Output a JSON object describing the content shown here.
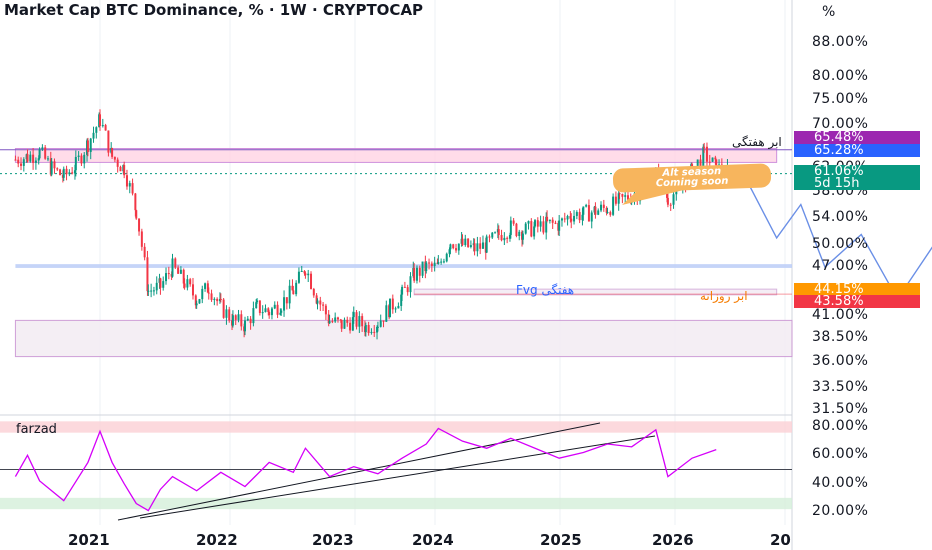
{
  "header": {
    "title": "Market Cap BTC Dominance, % · 1W · CRYPTOCAP",
    "unit": "%"
  },
  "colors": {
    "up": "#089981",
    "down": "#f23645",
    "osc_line": "#d500f9",
    "purple_zone": "#ffd6e6",
    "blue_band": "#bbcdf7",
    "projection": "#6a8fe6",
    "bubble": "#f7b55d",
    "osc_top_band": "#fbd0d4",
    "osc_bottom_band": "#d5efda"
  },
  "price_axis_ticks": [
    "88.00%",
    "80.00%",
    "75.00%",
    "70.00%",
    "62.00%",
    "58.00%",
    "54.00%",
    "50.00%",
    "47.00%",
    "41.00%",
    "38.50%",
    "36.00%",
    "33.50%",
    "31.50%"
  ],
  "badges": [
    {
      "label": "65.48%",
      "color": "#9c27b0",
      "value": 65.48
    },
    {
      "label": "65.28%",
      "color": "#2962ff",
      "value": 65.28
    },
    {
      "label": "61.06%",
      "color": "#089981",
      "value": 61.06
    },
    {
      "label": "5d 15h",
      "color": "#089981",
      "value": null
    },
    {
      "label": "44.15%",
      "color": "#ff9800",
      "value": 44.15
    },
    {
      "label": "43.58%",
      "color": "#f23645",
      "value": 43.58
    }
  ],
  "annotations": {
    "weekly_cloud": "ابر هفتگی",
    "weekly_fvg": "Fvg هفتگی",
    "daily_cloud": "ابر روزانه",
    "bubble_line1": "Alt season",
    "bubble_line2": "Coming soon"
  },
  "oscillator": {
    "name": "farzad",
    "ticks": [
      "80.00%",
      "60.00%",
      "40.00%",
      "20.00%"
    ]
  },
  "x_axis_ticks": [
    "2021",
    "2022",
    "2023",
    "2024",
    "2025",
    "2026",
    "20"
  ],
  "chart_data": [
    {
      "type": "candlestick",
      "title": "Market Cap BTC Dominance, % · 1W · CRYPTOCAP",
      "unit": "%",
      "interval": "1W",
      "x_range": [
        "2020-06",
        "2027"
      ],
      "y_scale": "log",
      "key_levels": [
        65.48,
        65.28,
        61.06,
        44.15,
        43.58
      ],
      "close_path": [
        {
          "date": "2020-06",
          "value": 63.5
        },
        {
          "date": "2020-07",
          "value": 64.0
        },
        {
          "date": "2020-08",
          "value": 64.8
        },
        {
          "date": "2020-09",
          "value": 62.0
        },
        {
          "date": "2020-10",
          "value": 60.5
        },
        {
          "date": "2020-11",
          "value": 62.5
        },
        {
          "date": "2020-12",
          "value": 66.5
        },
        {
          "date": "2021-01",
          "value": 71.0
        },
        {
          "date": "2021-02",
          "value": 64.0
        },
        {
          "date": "2021-03",
          "value": 62.0
        },
        {
          "date": "2021-04",
          "value": 55.0
        },
        {
          "date": "2021-05",
          "value": 44.0
        },
        {
          "date": "2021-06",
          "value": 44.5
        },
        {
          "date": "2021-07",
          "value": 47.0
        },
        {
          "date": "2021-08",
          "value": 45.0
        },
        {
          "date": "2021-09",
          "value": 43.0
        },
        {
          "date": "2021-10",
          "value": 44.5
        },
        {
          "date": "2021-11",
          "value": 42.0
        },
        {
          "date": "2021-12",
          "value": 40.5
        },
        {
          "date": "2022-01",
          "value": 40.0
        },
        {
          "date": "2022-02",
          "value": 42.0
        },
        {
          "date": "2022-03",
          "value": 41.5
        },
        {
          "date": "2022-04",
          "value": 42.5
        },
        {
          "date": "2022-05",
          "value": 44.0
        },
        {
          "date": "2022-06",
          "value": 47.0
        },
        {
          "date": "2022-07",
          "value": 43.0
        },
        {
          "date": "2022-08",
          "value": 40.5
        },
        {
          "date": "2022-09",
          "value": 40.0
        },
        {
          "date": "2022-10",
          "value": 40.5
        },
        {
          "date": "2022-11",
          "value": 39.8
        },
        {
          "date": "2022-12",
          "value": 40.3
        },
        {
          "date": "2023-01",
          "value": 42.0
        },
        {
          "date": "2023-02",
          "value": 43.5
        },
        {
          "date": "2023-03",
          "value": 46.0
        },
        {
          "date": "2023-04",
          "value": 47.0
        },
        {
          "date": "2023-05",
          "value": 47.0
        },
        {
          "date": "2023-06",
          "value": 50.5
        },
        {
          "date": "2023-07",
          "value": 50.0
        },
        {
          "date": "2023-08",
          "value": 49.5
        },
        {
          "date": "2023-09",
          "value": 50.0
        },
        {
          "date": "2023-10",
          "value": 51.5
        },
        {
          "date": "2023-11",
          "value": 52.5
        },
        {
          "date": "2023-12",
          "value": 52.0
        },
        {
          "date": "2024-01",
          "value": 52.5
        },
        {
          "date": "2024-02",
          "value": 53.0
        },
        {
          "date": "2024-03",
          "value": 53.0
        },
        {
          "date": "2024-04",
          "value": 54.5
        },
        {
          "date": "2024-05",
          "value": 54.5
        },
        {
          "date": "2024-06",
          "value": 55.0
        },
        {
          "date": "2024-07",
          "value": 55.5
        },
        {
          "date": "2024-08",
          "value": 56.5
        },
        {
          "date": "2024-09",
          "value": 57.5
        },
        {
          "date": "2024-10",
          "value": 58.5
        },
        {
          "date": "2024-11",
          "value": 60.5
        },
        {
          "date": "2024-12",
          "value": 57.0
        },
        {
          "date": "2025-01",
          "value": 58.5
        },
        {
          "date": "2025-02",
          "value": 61.5
        },
        {
          "date": "2025-03",
          "value": 64.5
        },
        {
          "date": "2025-04",
          "value": 62.0
        },
        {
          "date": "2025-05",
          "value": 61.06
        }
      ],
      "projection_path": [
        {
          "date": "2025-06",
          "value": 62.0
        },
        {
          "date": "2025-09",
          "value": 51.0
        },
        {
          "date": "2025-11",
          "value": 56.0
        },
        {
          "date": "2026-01",
          "value": 47.0
        },
        {
          "date": "2026-04",
          "value": 51.5
        },
        {
          "date": "2026-07",
          "value": 43.0
        },
        {
          "date": "2026-10",
          "value": 50.0
        }
      ],
      "zones": [
        {
          "name": "weekly cloud",
          "from": 63.0,
          "to": 65.5,
          "x_start": "2020-06",
          "x_end": "2025-09"
        },
        {
          "name": "blue band",
          "from": 46.9,
          "to": 47.4,
          "x_start": "2020-06",
          "x_end": "2027"
        },
        {
          "name": "weekly Fvg",
          "from": 43.5,
          "to": 44.2,
          "x_start": "2023-03",
          "x_end": "2025-09"
        },
        {
          "name": "lower box",
          "from": 36.6,
          "to": 40.5,
          "x_start": "2020-06",
          "x_end": "2026-08"
        }
      ]
    },
    {
      "type": "line",
      "name": "farzad",
      "y_ticks": [
        80,
        60,
        40,
        20
      ],
      "bands": [
        {
          "from": 76,
          "to": 84
        },
        {
          "from": 22,
          "to": 30
        }
      ],
      "reference_line": 50,
      "points": [
        {
          "date": "2020-06",
          "value": 45
        },
        {
          "date": "2020-07",
          "value": 60
        },
        {
          "date": "2020-08",
          "value": 42
        },
        {
          "date": "2020-10",
          "value": 28
        },
        {
          "date": "2020-12",
          "value": 55
        },
        {
          "date": "2021-01",
          "value": 77
        },
        {
          "date": "2021-02",
          "value": 55
        },
        {
          "date": "2021-03",
          "value": 40
        },
        {
          "date": "2021-04",
          "value": 26
        },
        {
          "date": "2021-05",
          "value": 21
        },
        {
          "date": "2021-06",
          "value": 36
        },
        {
          "date": "2021-07",
          "value": 45
        },
        {
          "date": "2021-09",
          "value": 35
        },
        {
          "date": "2021-11",
          "value": 48
        },
        {
          "date": "2022-01",
          "value": 38
        },
        {
          "date": "2022-03",
          "value": 55
        },
        {
          "date": "2022-05",
          "value": 48
        },
        {
          "date": "2022-06",
          "value": 65
        },
        {
          "date": "2022-08",
          "value": 45
        },
        {
          "date": "2022-10",
          "value": 52
        },
        {
          "date": "2022-12",
          "value": 47
        },
        {
          "date": "2023-02",
          "value": 58
        },
        {
          "date": "2023-04",
          "value": 68
        },
        {
          "date": "2023-05",
          "value": 79
        },
        {
          "date": "2023-07",
          "value": 70
        },
        {
          "date": "2023-09",
          "value": 65
        },
        {
          "date": "2023-11",
          "value": 72
        },
        {
          "date": "2024-01",
          "value": 65
        },
        {
          "date": "2024-03",
          "value": 58
        },
        {
          "date": "2024-05",
          "value": 62
        },
        {
          "date": "2024-07",
          "value": 68
        },
        {
          "date": "2024-09",
          "value": 66
        },
        {
          "date": "2024-11",
          "value": 78
        },
        {
          "date": "2024-12",
          "value": 45
        },
        {
          "date": "2025-02",
          "value": 58
        },
        {
          "date": "2025-04",
          "value": 64
        }
      ]
    }
  ]
}
